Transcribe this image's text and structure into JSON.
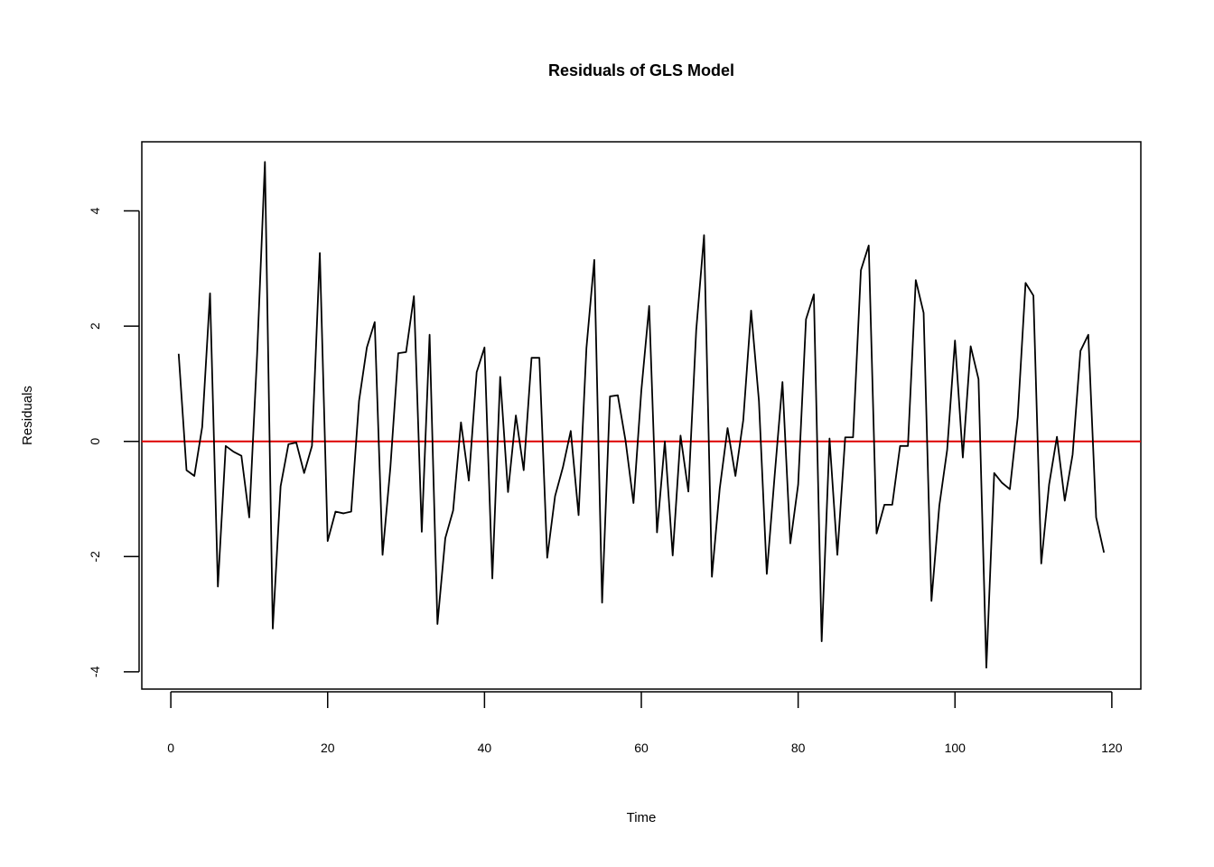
{
  "chart_data": {
    "type": "line",
    "title": "Residuals of GLS Model",
    "xlabel": "Time",
    "ylabel": "Residuals",
    "xlim": [
      -3.7,
      123.7
    ],
    "ylim": [
      -4.3,
      5.2
    ],
    "x_ticks": [
      "0",
      "20",
      "40",
      "60",
      "80",
      "100",
      "120"
    ],
    "y_ticks": [
      "-4",
      "-2",
      "0",
      "2",
      "4"
    ],
    "x_tick_values": [
      0,
      20,
      40,
      60,
      80,
      100,
      120
    ],
    "y_tick_values": [
      -4,
      -2,
      0,
      2,
      4
    ],
    "grid": false,
    "reference_line": {
      "y": 0,
      "color": "#dd0000"
    },
    "series": [
      {
        "color": "#000000",
        "x": [
          1,
          2,
          3,
          4,
          5,
          6,
          7,
          8,
          9,
          10,
          11,
          12,
          13,
          14,
          15,
          16,
          17,
          18,
          19,
          20,
          21,
          22,
          23,
          24,
          25,
          26,
          27,
          28,
          29,
          30,
          31,
          32,
          33,
          34,
          35,
          36,
          37,
          38,
          39,
          40,
          41,
          42,
          43,
          44,
          45,
          46,
          47,
          48,
          49,
          50,
          51,
          52,
          53,
          54,
          55,
          56,
          57,
          58,
          59,
          60,
          61,
          62,
          63,
          64,
          65,
          66,
          67,
          68,
          69,
          70,
          71,
          72,
          73,
          74,
          75,
          76,
          77,
          78,
          79,
          80,
          81,
          82,
          83,
          84,
          85,
          86,
          87,
          88,
          89,
          90,
          91,
          92,
          93,
          94,
          95,
          96,
          97,
          98,
          99,
          100,
          101,
          102,
          103,
          104,
          105,
          106,
          107,
          108,
          109,
          110,
          111,
          112,
          113,
          114,
          115,
          116,
          117,
          118,
          119
        ],
        "values": [
          1.52,
          -0.5,
          -0.6,
          0.25,
          2.57,
          -2.52,
          -0.08,
          -0.18,
          -0.25,
          -1.32,
          1.5,
          4.85,
          -3.25,
          -0.78,
          -0.05,
          -0.02,
          -0.55,
          -0.08,
          3.27,
          -1.73,
          -1.22,
          -1.25,
          -1.22,
          0.7,
          1.63,
          2.07,
          -1.97,
          -0.45,
          1.53,
          1.55,
          2.52,
          -1.57,
          1.85,
          -3.17,
          -1.68,
          -1.2,
          0.33,
          -0.68,
          1.2,
          1.63,
          -2.38,
          1.12,
          -0.88,
          0.45,
          -0.5,
          1.45,
          1.45,
          -2.02,
          -0.95,
          -0.45,
          0.18,
          -1.28,
          1.62,
          3.15,
          -2.8,
          0.78,
          0.8,
          0.0,
          -1.07,
          0.88,
          2.35,
          -1.58,
          0.0,
          -1.98,
          0.1,
          -0.87,
          1.93,
          3.58,
          -2.35,
          -0.82,
          0.23,
          -0.6,
          0.37,
          2.27,
          0.7,
          -2.3,
          -0.6,
          1.03,
          -1.77,
          -0.75,
          2.12,
          2.55,
          -3.47,
          0.05,
          -1.97,
          0.07,
          0.07,
          2.97,
          3.4,
          -1.6,
          -1.1,
          -1.1,
          -0.08,
          -0.08,
          2.8,
          2.23,
          -2.77,
          -1.12,
          -0.15,
          1.75,
          -0.28,
          1.65,
          1.08,
          -3.93,
          -0.55,
          -0.72,
          -0.83,
          0.42,
          2.75,
          2.53,
          -2.12,
          -0.75,
          0.08,
          -1.03,
          -0.23,
          1.57,
          1.85,
          -1.32,
          -1.93
        ]
      }
    ]
  }
}
